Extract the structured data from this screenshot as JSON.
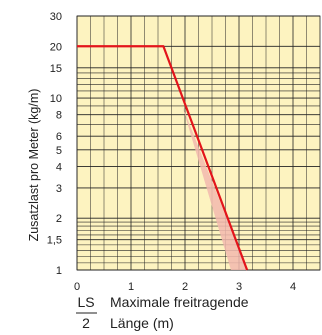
{
  "chart_data": {
    "type": "line",
    "xlabel_fraction": {
      "numerator": "LS",
      "denominator": "2"
    },
    "xlabel_line1": "Maximale freitragende",
    "xlabel_line2": "Länge (m)",
    "ylabel": "Zusatzlast pro Meter (kg/m)",
    "xlim": [
      0,
      4.5
    ],
    "ylim": [
      1,
      30
    ],
    "y_scale": "log",
    "x_ticks": [
      0,
      1,
      2,
      3,
      4
    ],
    "x_tick_labels": [
      "0",
      "1",
      "2",
      "3",
      "4"
    ],
    "y_ticks": [
      1,
      1.5,
      2,
      3,
      4,
      5,
      6,
      8,
      10,
      15,
      20,
      30
    ],
    "y_tick_labels": [
      "1",
      "1,5",
      "2",
      "3",
      "4",
      "5",
      "6",
      "8",
      "10",
      "15",
      "20",
      "30"
    ],
    "y_minor_gridlines": [
      1.1,
      1.2,
      1.3,
      1.4,
      1.6,
      1.7,
      1.8,
      1.9,
      7,
      9,
      11,
      12,
      13,
      14
    ],
    "x_minor_gridlines": [
      0.25,
      0.5,
      0.75,
      1.25,
      1.5,
      1.75,
      2.25,
      2.5,
      2.75,
      3.25,
      3.5,
      3.75,
      4.25
    ],
    "grid": true,
    "series": [
      {
        "points": [
          [
            0,
            20
          ],
          [
            1.6,
            20
          ],
          [
            3.15,
            1
          ]
        ]
      }
    ],
    "tolerance_band": [
      [
        1.95,
        9
      ],
      [
        3.15,
        1
      ],
      [
        2.85,
        1
      ]
    ],
    "colors": {
      "background": "#fdf3c0",
      "grid": "#222222",
      "line": "#e3141b",
      "band": "#f2b8ae"
    }
  }
}
